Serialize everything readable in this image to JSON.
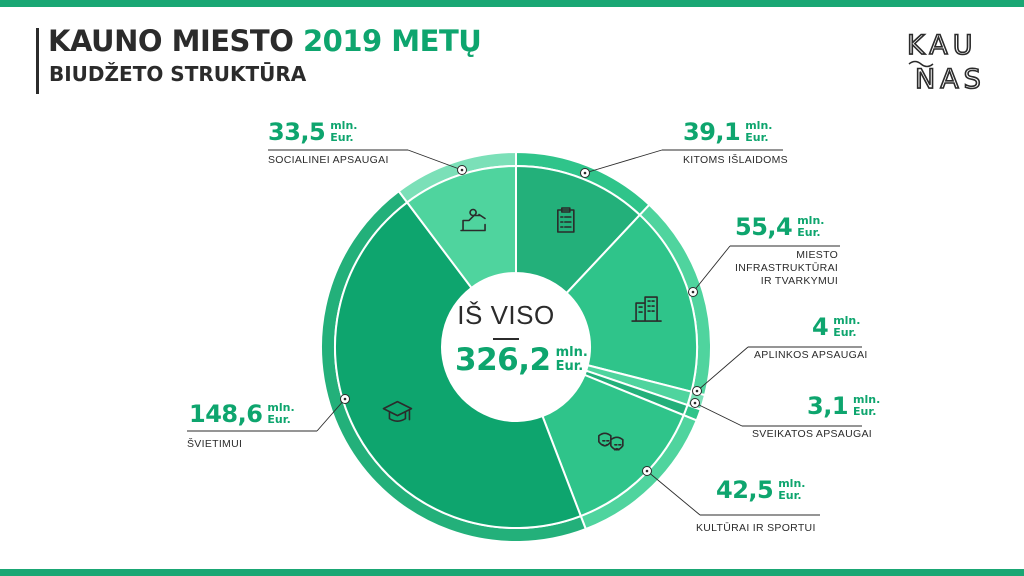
{
  "colors": {
    "brand_green": "#0ea56e",
    "bar": "#1aa774",
    "text_dark": "#2b2b2b",
    "slice_dark": "#23b07a",
    "slice_mid": "#2fc48a",
    "slice_light": "#4fd49e",
    "ring_edge": "#7be0b8"
  },
  "header": {
    "title_part1": "KAUNO MIESTO ",
    "title_part2": "2019 METŲ",
    "subtitle": "BIUDŽETO STRUKTŪRA",
    "logo_top": "KAU",
    "logo_bottom": "NAS"
  },
  "unit_line1": "mln.",
  "unit_line2": "Eur.",
  "center": {
    "title": "IŠ VISO",
    "total": "326,2"
  },
  "chart_data": {
    "type": "pie",
    "subtype": "donut",
    "unit": "mln. Eur.",
    "total": 326.2,
    "slices": [
      {
        "label": "KITOMS IŠLAIDOMS",
        "value": 39.1,
        "display": "39,1",
        "icon": "clipboard-checklist-icon"
      },
      {
        "label": "MIESTO INFRASTRUKTŪRAI IR TVARKYMUI",
        "label_lines": [
          "MIESTO",
          "INFRASTRUKTŪRAI",
          "IR TVARKYMUI"
        ],
        "value": 55.4,
        "display": "55,4",
        "icon": "buildings-icon"
      },
      {
        "label": "APLINKOS APSAUGAI",
        "value": 4,
        "display": "4",
        "icon": ""
      },
      {
        "label": "SVEIKATOS APSAUGAI",
        "value": 3.1,
        "display": "3,1",
        "icon": ""
      },
      {
        "label": "KULTŪRAI IR SPORTUI",
        "value": 42.5,
        "display": "42,5",
        "icon": "theater-masks-icon"
      },
      {
        "label": "ŠVIETIMUI",
        "value": 148.6,
        "display": "148,6",
        "icon": "graduation-cap-icon"
      },
      {
        "label": "SOCIALINEI APSAUGAI",
        "value": 33.5,
        "display": "33,5",
        "icon": "helping-hand-icon"
      }
    ]
  }
}
